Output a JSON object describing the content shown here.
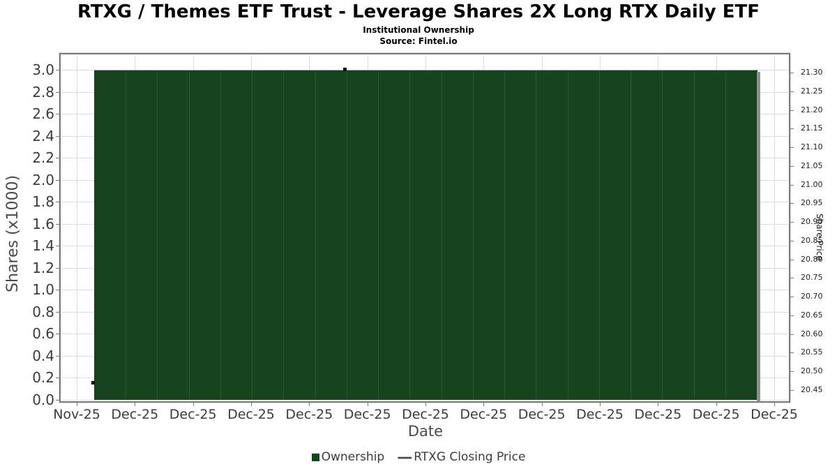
{
  "header": {
    "title": "RTXG / Themes ETF Trust - Leverage Shares 2X Long RTX Daily ETF",
    "subtitle": "Institutional Ownership",
    "source": "Source: Fintel.io"
  },
  "chart_data": {
    "type": "bar",
    "title": "RTXG / Themes ETF Trust - Leverage Shares 2X Long RTX Daily ETF",
    "subtitle": "Institutional Ownership",
    "source": "Source: Fintel.io",
    "xlabel": "Date",
    "ylabel_left": "Shares (x1000)",
    "ylabel_right": "Share Price",
    "x_tick_labels": [
      "Nov-25",
      "Dec-25",
      "Dec-25",
      "Dec-25",
      "Dec-25",
      "Dec-25",
      "Dec-25",
      "Dec-25",
      "Dec-25",
      "Dec-25",
      "Dec-25",
      "Dec-25",
      "Dec-25"
    ],
    "left_axis": {
      "min": 0.0,
      "max": 3.0,
      "step": 0.2,
      "ticks": [
        "3.0",
        "2.8",
        "2.6",
        "2.4",
        "2.2",
        "2.0",
        "1.8",
        "1.6",
        "1.4",
        "1.2",
        "1.0",
        "0.8",
        "0.6",
        "0.4",
        "0.2",
        "0.0"
      ]
    },
    "right_axis": {
      "min": 20.45,
      "max": 21.3,
      "step": 0.05,
      "ticks": [
        "21.30",
        "21.25",
        "21.20",
        "21.15",
        "21.10",
        "21.05",
        "21.00",
        "20.95",
        "20.90",
        "20.85",
        "20.80",
        "20.75",
        "20.70",
        "20.65",
        "20.60",
        "20.55",
        "20.50",
        "20.45"
      ]
    },
    "grid": true,
    "legend_position": "bottom-center",
    "series": [
      {
        "name": "Ownership",
        "type": "bar",
        "color": "#18431f",
        "separator_color": "#2f5737",
        "values_unit": "thousands of shares",
        "values": [
          3,
          3,
          3,
          3,
          3,
          3,
          3,
          3,
          3,
          3,
          3,
          3,
          3,
          3,
          3,
          3,
          3,
          3,
          3,
          3,
          3
        ]
      },
      {
        "name": "RTXG Closing Price",
        "type": "line",
        "color": "#4d4d4d",
        "marker_color": "#111111",
        "points": [
          {
            "x_frac": 0.044,
            "price": 20.47
          },
          {
            "x_frac": 0.39,
            "price": 21.31
          }
        ]
      }
    ],
    "legend": [
      {
        "label": "Ownership",
        "swatch": "square",
        "color": "#18431f"
      },
      {
        "label": "RTXG Closing Price",
        "swatch": "dash",
        "color": "#4d4d4d"
      }
    ],
    "colors": {
      "grid": "#dcdcdc",
      "frame": "#7b7b7b",
      "frame_outer": "#d9d9d9",
      "bar_shadow": "#8f8f8f",
      "tick_text": "#3c3c3c",
      "axis_title_text": "#4a4a4a"
    }
  }
}
